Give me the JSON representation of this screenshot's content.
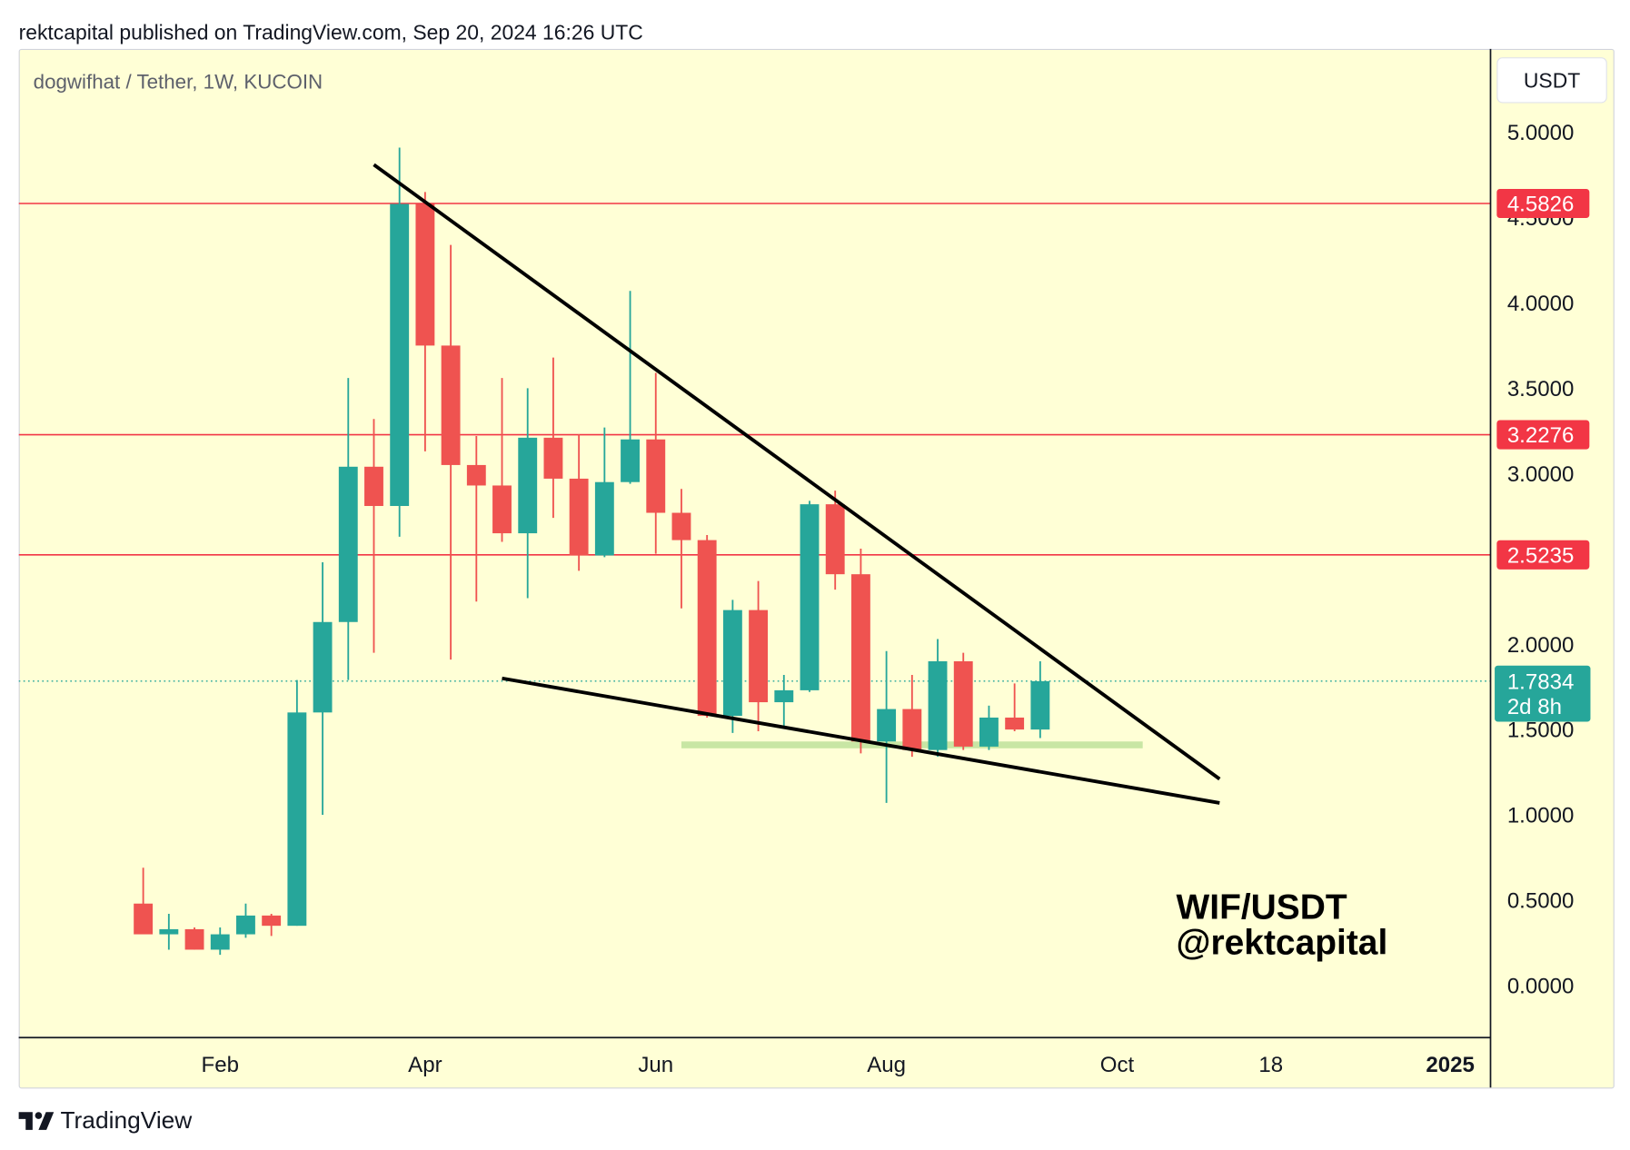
{
  "header": {
    "published": "rektcapital published on TradingView.com, Sep 20, 2024 16:26 UTC"
  },
  "colors": {
    "background": "#ffffd6",
    "up_candle": "#26a69a",
    "down_candle": "#ef5350",
    "level_line": "#f23645",
    "last_price": "#26a69a",
    "support_zone": "#c8e6a4",
    "trendline": "#000000",
    "text": "#131722"
  },
  "annotation": {
    "lines": [
      "WIF/USDT",
      "@rektcapital"
    ]
  },
  "footer": {
    "logo_icon": "tradingview-logo-icon",
    "brand": "TradingView"
  },
  "chart_data": {
    "type": "bar",
    "style": "candlestick",
    "title": "dogwifhat / Tether, 1W, KUCOIN",
    "scale": "linear",
    "grid": false,
    "x_axis": {
      "range": [
        "2023-12-12",
        "2025-01-17"
      ],
      "ticks": [
        {
          "label": "Feb",
          "date": "2024-02-05"
        },
        {
          "label": "Apr",
          "date": "2024-04-01"
        },
        {
          "label": "Jun",
          "date": "2024-06-03"
        },
        {
          "label": "Aug",
          "date": "2024-08-05"
        },
        {
          "label": "Oct",
          "date": "2024-10-07"
        },
        {
          "label": "18",
          "date": "2024-11-18"
        },
        {
          "label": "2025",
          "date": "2025-01-06"
        }
      ]
    },
    "y_axis": {
      "unit": "USDT",
      "position": "right",
      "range": [
        -0.305,
        5.488
      ],
      "ticks": [
        "0.0000",
        "0.5000",
        "1.0000",
        "1.5000",
        "2.0000",
        "3.0000",
        "3.5000",
        "4.0000",
        "4.5000",
        "5.0000"
      ]
    },
    "candles": [
      {
        "date": "2024-01-15",
        "open": 0.48,
        "high": 0.69,
        "low": 0.3,
        "close": 0.3
      },
      {
        "date": "2024-01-22",
        "open": 0.3,
        "high": 0.42,
        "low": 0.21,
        "close": 0.33
      },
      {
        "date": "2024-01-29",
        "open": 0.33,
        "high": 0.34,
        "low": 0.21,
        "close": 0.21
      },
      {
        "date": "2024-02-05",
        "open": 0.21,
        "high": 0.34,
        "low": 0.18,
        "close": 0.3
      },
      {
        "date": "2024-02-12",
        "open": 0.3,
        "high": 0.48,
        "low": 0.28,
        "close": 0.41
      },
      {
        "date": "2024-02-19",
        "open": 0.41,
        "high": 0.42,
        "low": 0.29,
        "close": 0.35
      },
      {
        "date": "2024-02-26",
        "open": 0.35,
        "high": 1.79,
        "low": 0.35,
        "close": 1.6
      },
      {
        "date": "2024-03-04",
        "open": 1.6,
        "high": 2.48,
        "low": 1.0,
        "close": 2.13
      },
      {
        "date": "2024-03-11",
        "open": 2.13,
        "high": 3.56,
        "low": 1.79,
        "close": 3.04
      },
      {
        "date": "2024-03-18",
        "open": 3.04,
        "high": 3.32,
        "low": 1.95,
        "close": 2.81
      },
      {
        "date": "2024-03-25",
        "open": 2.81,
        "high": 4.91,
        "low": 2.63,
        "close": 4.58
      },
      {
        "date": "2024-04-01",
        "open": 4.58,
        "high": 4.65,
        "low": 3.13,
        "close": 3.75
      },
      {
        "date": "2024-04-08",
        "open": 3.75,
        "high": 4.34,
        "low": 1.91,
        "close": 3.05
      },
      {
        "date": "2024-04-15",
        "open": 3.05,
        "high": 3.22,
        "low": 2.25,
        "close": 2.93
      },
      {
        "date": "2024-04-22",
        "open": 2.93,
        "high": 3.56,
        "low": 2.6,
        "close": 2.65
      },
      {
        "date": "2024-04-29",
        "open": 2.65,
        "high": 3.5,
        "low": 2.27,
        "close": 3.21
      },
      {
        "date": "2024-05-06",
        "open": 3.21,
        "high": 3.68,
        "low": 2.74,
        "close": 2.97
      },
      {
        "date": "2024-05-13",
        "open": 2.97,
        "high": 3.23,
        "low": 2.43,
        "close": 2.52
      },
      {
        "date": "2024-05-20",
        "open": 2.52,
        "high": 3.27,
        "low": 2.51,
        "close": 2.95
      },
      {
        "date": "2024-05-27",
        "open": 2.95,
        "high": 4.07,
        "low": 2.94,
        "close": 3.2
      },
      {
        "date": "2024-06-03",
        "open": 3.2,
        "high": 3.59,
        "low": 2.53,
        "close": 2.77
      },
      {
        "date": "2024-06-10",
        "open": 2.77,
        "high": 2.91,
        "low": 2.21,
        "close": 2.61
      },
      {
        "date": "2024-06-17",
        "open": 2.61,
        "high": 2.64,
        "low": 1.57,
        "close": 1.58
      },
      {
        "date": "2024-06-24",
        "open": 1.58,
        "high": 2.26,
        "low": 1.48,
        "close": 2.2
      },
      {
        "date": "2024-07-01",
        "open": 2.2,
        "high": 2.37,
        "low": 1.49,
        "close": 1.66
      },
      {
        "date": "2024-07-08",
        "open": 1.66,
        "high": 1.82,
        "low": 1.51,
        "close": 1.73
      },
      {
        "date": "2024-07-15",
        "open": 1.73,
        "high": 2.84,
        "low": 1.72,
        "close": 2.82
      },
      {
        "date": "2024-07-22",
        "open": 2.82,
        "high": 2.9,
        "low": 2.32,
        "close": 2.41
      },
      {
        "date": "2024-07-29",
        "open": 2.41,
        "high": 2.56,
        "low": 1.36,
        "close": 1.43
      },
      {
        "date": "2024-08-05",
        "open": 1.43,
        "high": 1.96,
        "low": 1.07,
        "close": 1.62
      },
      {
        "date": "2024-08-12",
        "open": 1.62,
        "high": 1.82,
        "low": 1.34,
        "close": 1.38
      },
      {
        "date": "2024-08-19",
        "open": 1.38,
        "high": 2.03,
        "low": 1.34,
        "close": 1.9
      },
      {
        "date": "2024-08-26",
        "open": 1.9,
        "high": 1.95,
        "low": 1.38,
        "close": 1.4
      },
      {
        "date": "2024-09-02",
        "open": 1.4,
        "high": 1.64,
        "low": 1.38,
        "close": 1.57
      },
      {
        "date": "2024-09-09",
        "open": 1.57,
        "high": 1.77,
        "low": 1.49,
        "close": 1.5
      },
      {
        "date": "2024-09-16",
        "open": 1.5,
        "high": 1.9,
        "low": 1.45,
        "close": 1.7834
      }
    ],
    "levels": [
      "4.5826",
      "3.2276",
      "2.5235"
    ],
    "last_price": {
      "value": "1.7834",
      "countdown": "2d 8h"
    },
    "trendlines": [
      {
        "from": {
          "date": "2024-03-18",
          "price": 4.81
        },
        "to": {
          "date": "2024-11-04",
          "price": 1.21
        }
      },
      {
        "from": {
          "date": "2024-04-22",
          "price": 1.8
        },
        "to": {
          "date": "2024-11-04",
          "price": 1.07
        }
      }
    ],
    "support_zone": {
      "from": "2024-06-10",
      "to": "2024-10-14",
      "low": 1.39,
      "high": 1.43
    }
  }
}
